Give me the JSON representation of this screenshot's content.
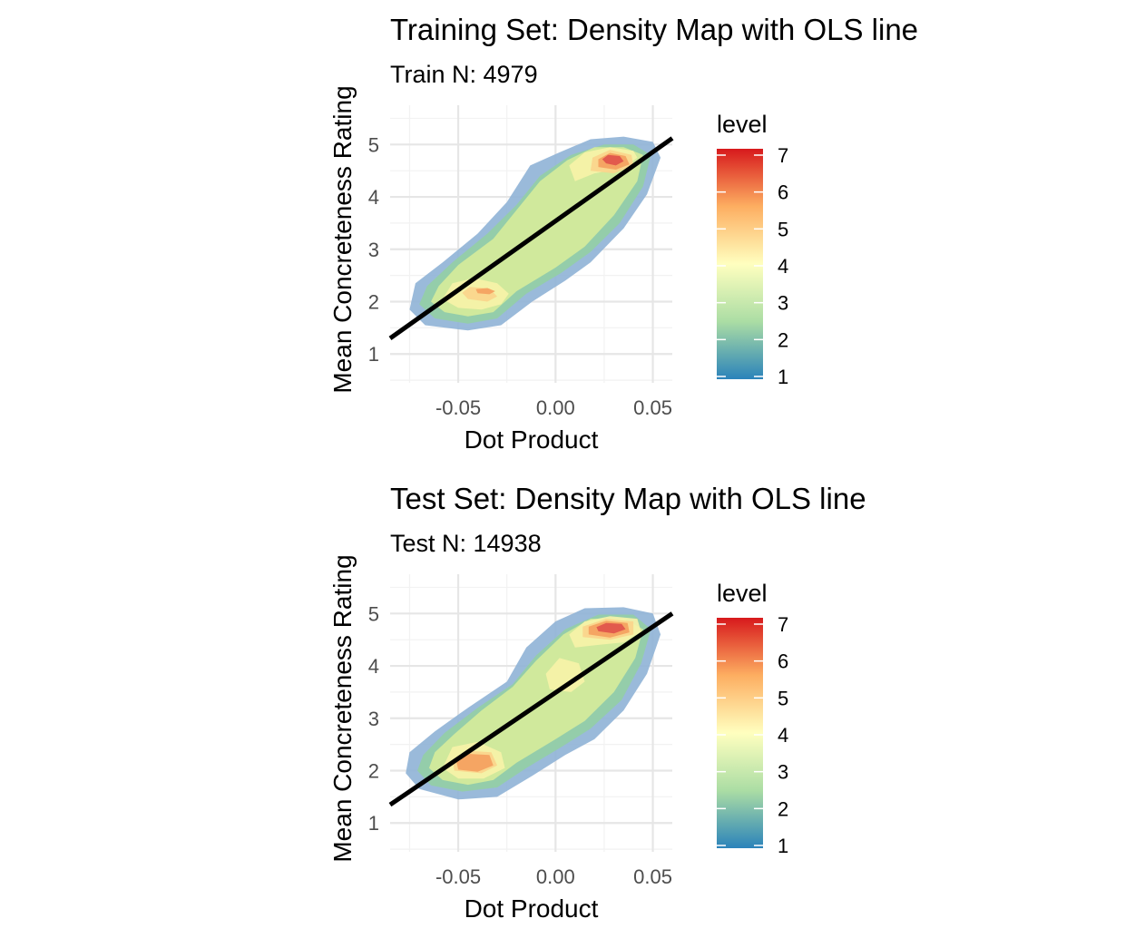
{
  "colors": {
    "background": "#ffffff",
    "grid_major": "#e6e6e6",
    "grid_minor": "#f2f2f2",
    "ols_line": "#000000",
    "tick_text": "#4d4d4d",
    "density_palette": "Spectral (low = blue, high = red)"
  },
  "chart_data": [
    {
      "type": "density_contour",
      "title": "Training Set: Density Map with OLS line",
      "subtitle": "Train N: 4979",
      "xlabel": "Dot Product",
      "ylabel": "Mean Concreteness Rating",
      "xlim": [
        -0.085,
        0.06
      ],
      "ylim": [
        0.45,
        5.75
      ],
      "x_ticks": [
        -0.05,
        0.0,
        0.05
      ],
      "x_tick_labels": [
        "-0.05",
        "0.00",
        "0.05"
      ],
      "y_ticks": [
        1,
        2,
        3,
        4,
        5
      ],
      "y_tick_labels": [
        "1",
        "2",
        "3",
        "4",
        "5"
      ],
      "grid": true,
      "legend": {
        "title": "level",
        "position": "right",
        "levels": [
          1,
          2,
          3,
          4,
          5,
          6,
          7
        ],
        "labels": [
          "1",
          "2",
          "3",
          "4",
          "5",
          "6",
          "7"
        ]
      },
      "density_levels": [
        {
          "level": 1,
          "color": "#8fb3d6",
          "points": [
            [
              -0.075,
              1.85
            ],
            [
              -0.067,
              1.55
            ],
            [
              -0.045,
              1.45
            ],
            [
              -0.028,
              1.55
            ],
            [
              -0.012,
              2.0
            ],
            [
              0.005,
              2.4
            ],
            [
              0.018,
              2.75
            ],
            [
              0.035,
              3.4
            ],
            [
              0.047,
              4.05
            ],
            [
              0.054,
              4.75
            ],
            [
              0.05,
              5.05
            ],
            [
              0.035,
              5.15
            ],
            [
              0.018,
              5.1
            ],
            [
              0.002,
              4.85
            ],
            [
              -0.013,
              4.6
            ],
            [
              -0.025,
              3.9
            ],
            [
              -0.04,
              3.3
            ],
            [
              -0.058,
              2.75
            ],
            [
              -0.072,
              2.35
            ]
          ]
        },
        {
          "level": 2,
          "color": "#93cfa4",
          "points": [
            [
              -0.07,
              1.95
            ],
            [
              -0.062,
              1.68
            ],
            [
              -0.045,
              1.58
            ],
            [
              -0.03,
              1.68
            ],
            [
              -0.015,
              2.15
            ],
            [
              0.003,
              2.55
            ],
            [
              0.018,
              2.95
            ],
            [
              0.033,
              3.5
            ],
            [
              0.045,
              4.2
            ],
            [
              0.049,
              4.8
            ],
            [
              0.04,
              5.0
            ],
            [
              0.025,
              5.0
            ],
            [
              0.008,
              4.8
            ],
            [
              -0.008,
              4.4
            ],
            [
              -0.02,
              3.85
            ],
            [
              -0.035,
              3.3
            ],
            [
              -0.053,
              2.75
            ],
            [
              -0.066,
              2.3
            ]
          ]
        },
        {
          "level": 3,
          "color": "#d6ec9a",
          "points": [
            [
              -0.064,
              2.0
            ],
            [
              -0.057,
              1.8
            ],
            [
              -0.045,
              1.72
            ],
            [
              -0.032,
              1.8
            ],
            [
              -0.02,
              2.2
            ],
            [
              0.0,
              2.65
            ],
            [
              0.015,
              3.05
            ],
            [
              0.03,
              3.65
            ],
            [
              0.042,
              4.3
            ],
            [
              0.045,
              4.8
            ],
            [
              0.035,
              4.95
            ],
            [
              0.02,
              4.95
            ],
            [
              0.006,
              4.7
            ],
            [
              -0.008,
              4.3
            ],
            [
              -0.02,
              3.75
            ],
            [
              -0.032,
              3.2
            ],
            [
              -0.05,
              2.7
            ],
            [
              -0.06,
              2.3
            ]
          ]
        },
        {
          "level": 4,
          "color": "#f7f3a8",
          "points": [
            [
              -0.058,
              2.05
            ],
            [
              -0.05,
              1.88
            ],
            [
              -0.038,
              1.85
            ],
            [
              -0.028,
              1.95
            ],
            [
              -0.024,
              2.15
            ],
            [
              -0.03,
              2.35
            ],
            [
              -0.042,
              2.45
            ],
            [
              -0.053,
              2.35
            ]
          ]
        },
        {
          "level": 4,
          "color": "#f7f3a8",
          "points": [
            [
              0.01,
              4.3
            ],
            [
              0.02,
              4.45
            ],
            [
              0.035,
              4.55
            ],
            [
              0.042,
              4.75
            ],
            [
              0.04,
              4.88
            ],
            [
              0.028,
              4.95
            ],
            [
              0.015,
              4.85
            ],
            [
              0.007,
              4.6
            ]
          ]
        },
        {
          "level": 5,
          "color": "#fbd48c",
          "points": [
            [
              -0.045,
              2.05
            ],
            [
              -0.035,
              2.0
            ],
            [
              -0.03,
              2.1
            ],
            [
              -0.034,
              2.25
            ],
            [
              -0.044,
              2.28
            ],
            [
              -0.048,
              2.17
            ]
          ]
        },
        {
          "level": 5,
          "color": "#fbd48c",
          "points": [
            [
              0.018,
              4.5
            ],
            [
              0.03,
              4.45
            ],
            [
              0.04,
              4.6
            ],
            [
              0.039,
              4.8
            ],
            [
              0.028,
              4.9
            ],
            [
              0.019,
              4.75
            ]
          ]
        },
        {
          "level": 6,
          "color": "#f4a05e",
          "points": [
            [
              -0.04,
              2.16
            ],
            [
              -0.034,
              2.14
            ],
            [
              -0.031,
              2.2
            ],
            [
              -0.035,
              2.26
            ],
            [
              -0.041,
              2.24
            ]
          ]
        },
        {
          "level": 6,
          "color": "#f4a05e",
          "points": [
            [
              0.022,
              4.57
            ],
            [
              0.031,
              4.52
            ],
            [
              0.038,
              4.62
            ],
            [
              0.036,
              4.78
            ],
            [
              0.028,
              4.84
            ],
            [
              0.022,
              4.72
            ]
          ]
        },
        {
          "level": 7,
          "color": "#e0524a",
          "points": [
            [
              0.026,
              4.64
            ],
            [
              0.031,
              4.6
            ],
            [
              0.035,
              4.68
            ],
            [
              0.033,
              4.78
            ],
            [
              0.027,
              4.8
            ],
            [
              0.024,
              4.72
            ]
          ]
        }
      ],
      "ols_line": {
        "x": [
          -0.085,
          0.06
        ],
        "y": [
          1.3,
          5.12
        ]
      }
    },
    {
      "type": "density_contour",
      "title": "Test Set: Density Map with OLS line",
      "subtitle": "Test N: 14938",
      "xlabel": "Dot Product",
      "ylabel": "Mean Concreteness Rating",
      "xlim": [
        -0.085,
        0.06
      ],
      "ylim": [
        0.45,
        5.75
      ],
      "x_ticks": [
        -0.05,
        0.0,
        0.05
      ],
      "x_tick_labels": [
        "-0.05",
        "0.00",
        "0.05"
      ],
      "y_ticks": [
        1,
        2,
        3,
        4,
        5
      ],
      "y_tick_labels": [
        "1",
        "2",
        "3",
        "4",
        "5"
      ],
      "grid": true,
      "legend": {
        "title": "level",
        "position": "right",
        "levels": [
          1,
          2,
          3,
          4,
          5,
          6,
          7
        ],
        "labels": [
          "1",
          "2",
          "3",
          "4",
          "5",
          "6",
          "7"
        ]
      },
      "density_levels": [
        {
          "level": 1,
          "color": "#8fb3d6",
          "points": [
            [
              -0.077,
              1.95
            ],
            [
              -0.07,
              1.65
            ],
            [
              -0.05,
              1.45
            ],
            [
              -0.03,
              1.5
            ],
            [
              -0.012,
              1.9
            ],
            [
              0.005,
              2.3
            ],
            [
              0.02,
              2.6
            ],
            [
              0.035,
              3.15
            ],
            [
              0.047,
              3.85
            ],
            [
              0.054,
              4.6
            ],
            [
              0.05,
              5.0
            ],
            [
              0.035,
              5.12
            ],
            [
              0.015,
              5.1
            ],
            [
              0.0,
              4.85
            ],
            [
              -0.015,
              4.35
            ],
            [
              -0.025,
              3.7
            ],
            [
              -0.045,
              3.2
            ],
            [
              -0.062,
              2.75
            ],
            [
              -0.075,
              2.35
            ]
          ]
        },
        {
          "level": 2,
          "color": "#93cfa4",
          "points": [
            [
              -0.071,
              2.0
            ],
            [
              -0.064,
              1.72
            ],
            [
              -0.048,
              1.6
            ],
            [
              -0.03,
              1.68
            ],
            [
              -0.015,
              2.05
            ],
            [
              0.003,
              2.45
            ],
            [
              0.018,
              2.8
            ],
            [
              0.034,
              3.35
            ],
            [
              0.044,
              4.05
            ],
            [
              0.049,
              4.7
            ],
            [
              0.04,
              4.98
            ],
            [
              0.022,
              4.98
            ],
            [
              0.005,
              4.7
            ],
            [
              -0.01,
              4.2
            ],
            [
              -0.022,
              3.65
            ],
            [
              -0.04,
              3.2
            ],
            [
              -0.057,
              2.72
            ],
            [
              -0.068,
              2.3
            ]
          ]
        },
        {
          "level": 3,
          "color": "#d6ec9a",
          "points": [
            [
              -0.065,
              2.05
            ],
            [
              -0.058,
              1.82
            ],
            [
              -0.045,
              1.73
            ],
            [
              -0.032,
              1.82
            ],
            [
              -0.02,
              2.15
            ],
            [
              0.0,
              2.6
            ],
            [
              0.015,
              2.95
            ],
            [
              0.03,
              3.5
            ],
            [
              0.041,
              4.15
            ],
            [
              0.045,
              4.7
            ],
            [
              0.035,
              4.9
            ],
            [
              0.018,
              4.9
            ],
            [
              0.004,
              4.6
            ],
            [
              -0.01,
              4.1
            ],
            [
              -0.022,
              3.6
            ],
            [
              -0.038,
              3.15
            ],
            [
              -0.052,
              2.7
            ],
            [
              -0.062,
              2.35
            ]
          ]
        },
        {
          "level": 4,
          "color": "#f7f3a8",
          "points": [
            [
              -0.058,
              2.05
            ],
            [
              -0.05,
              1.85
            ],
            [
              -0.037,
              1.85
            ],
            [
              -0.026,
              2.05
            ],
            [
              -0.028,
              2.35
            ],
            [
              -0.04,
              2.55
            ],
            [
              -0.053,
              2.45
            ]
          ]
        },
        {
          "level": 4,
          "color": "#f7f3a8",
          "points": [
            [
              -0.003,
              3.55
            ],
            [
              0.008,
              3.5
            ],
            [
              0.015,
              3.7
            ],
            [
              0.012,
              4.05
            ],
            [
              0.002,
              4.15
            ],
            [
              -0.005,
              3.85
            ]
          ]
        },
        {
          "level": 4,
          "color": "#f7f3a8",
          "points": [
            [
              0.01,
              4.35
            ],
            [
              0.022,
              4.4
            ],
            [
              0.035,
              4.45
            ],
            [
              0.044,
              4.65
            ],
            [
              0.042,
              4.9
            ],
            [
              0.028,
              4.95
            ],
            [
              0.015,
              4.85
            ],
            [
              0.007,
              4.6
            ]
          ]
        },
        {
          "level": 5,
          "color": "#fbd48c",
          "points": [
            [
              -0.052,
              2.0
            ],
            [
              -0.038,
              1.95
            ],
            [
              -0.03,
              2.1
            ],
            [
              -0.033,
              2.35
            ],
            [
              -0.045,
              2.38
            ],
            [
              -0.053,
              2.2
            ]
          ]
        },
        {
          "level": 5,
          "color": "#fbd48c",
          "points": [
            [
              0.014,
              4.55
            ],
            [
              0.028,
              4.5
            ],
            [
              0.04,
              4.6
            ],
            [
              0.04,
              4.85
            ],
            [
              0.026,
              4.9
            ],
            [
              0.014,
              4.75
            ]
          ]
        },
        {
          "level": 6,
          "color": "#f4a05e",
          "points": [
            [
              -0.05,
              2.02
            ],
            [
              -0.04,
              1.98
            ],
            [
              -0.032,
              2.1
            ],
            [
              -0.034,
              2.3
            ],
            [
              -0.045,
              2.32
            ],
            [
              -0.051,
              2.18
            ]
          ]
        },
        {
          "level": 6,
          "color": "#f4a05e",
          "points": [
            [
              0.017,
              4.6
            ],
            [
              0.028,
              4.54
            ],
            [
              0.038,
              4.64
            ],
            [
              0.037,
              4.82
            ],
            [
              0.026,
              4.86
            ],
            [
              0.017,
              4.75
            ]
          ]
        },
        {
          "level": 7,
          "color": "#e0524a",
          "points": [
            [
              0.022,
              4.66
            ],
            [
              0.03,
              4.62
            ],
            [
              0.036,
              4.7
            ],
            [
              0.034,
              4.8
            ],
            [
              0.026,
              4.82
            ],
            [
              0.021,
              4.74
            ]
          ]
        }
      ],
      "ols_line": {
        "x": [
          -0.085,
          0.06
        ],
        "y": [
          1.35,
          5.0
        ]
      }
    }
  ]
}
